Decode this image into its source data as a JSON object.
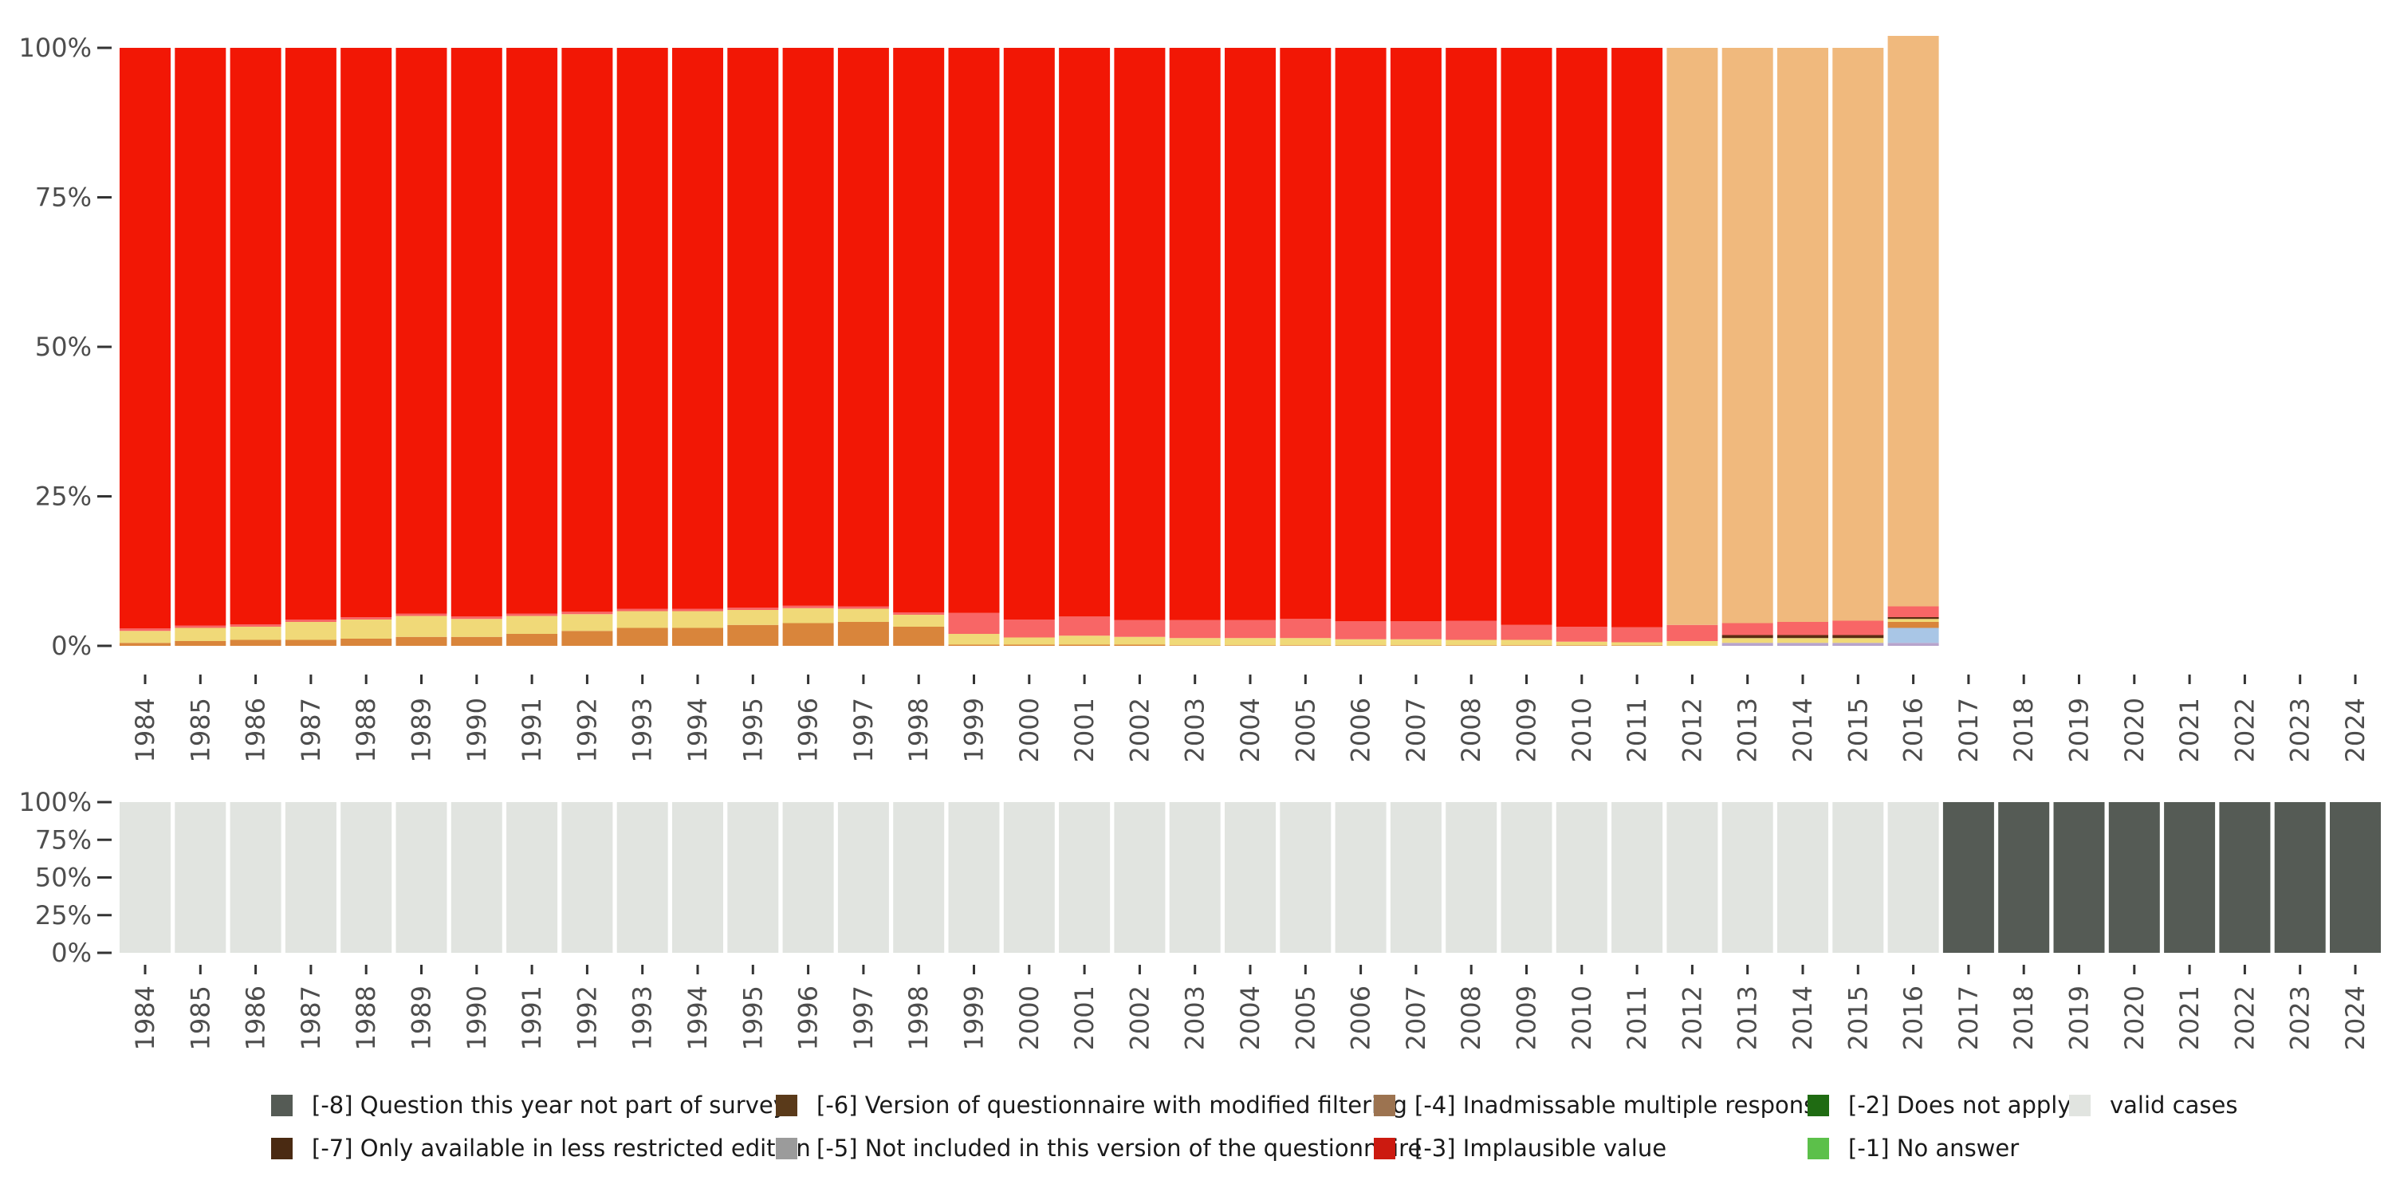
{
  "chart_data": [
    {
      "type": "bar",
      "stacked": true,
      "ylim": [
        0,
        100
      ],
      "yticks": [
        "0%",
        "25%",
        "50%",
        "75%",
        "100%"
      ],
      "categories": [
        "1984",
        "1985",
        "1986",
        "1987",
        "1988",
        "1989",
        "1990",
        "1991",
        "1992",
        "1993",
        "1994",
        "1995",
        "1996",
        "1997",
        "1998",
        "1999",
        "2000",
        "2001",
        "2002",
        "2003",
        "2004",
        "2005",
        "2006",
        "2007",
        "2008",
        "2009",
        "2010",
        "2011",
        "2012",
        "2013",
        "2014",
        "2015",
        "2016",
        "2017",
        "2018",
        "2019",
        "2020",
        "2021",
        "2022",
        "2023",
        "2024"
      ],
      "series": [
        {
          "name": "purple",
          "color": "#b7a4cc",
          "values": [
            0,
            0,
            0,
            0,
            0,
            0,
            0,
            0,
            0,
            0,
            0,
            0,
            0,
            0,
            0,
            0,
            0,
            0,
            0,
            0,
            0,
            0,
            0,
            0,
            0,
            0,
            0,
            0,
            0,
            0.5,
            0.5,
            0.5,
            0.5,
            0,
            0,
            0,
            0,
            0,
            0,
            0,
            0
          ]
        },
        {
          "name": "light blue",
          "color": "#a9c6e6",
          "values": [
            0,
            0,
            0,
            0,
            0,
            0,
            0,
            0,
            0,
            0,
            0,
            0,
            0,
            0,
            0,
            0,
            0,
            0,
            0,
            0,
            0,
            0,
            0,
            0,
            0,
            0,
            0,
            0,
            0,
            0,
            0,
            0,
            2.5,
            0,
            0,
            0,
            0,
            0,
            0,
            0,
            0
          ]
        },
        {
          "name": "dark orange",
          "color": "#d9853b",
          "values": [
            0.5,
            0.8,
            1,
            1,
            1.2,
            1.5,
            1.5,
            2,
            2.5,
            3,
            3,
            3.5,
            3.8,
            4,
            3.2,
            0.2,
            0.2,
            0.2,
            0.2,
            0.1,
            0.1,
            0.1,
            0.1,
            0.1,
            0.1,
            0.1,
            0.1,
            0.1,
            0,
            0,
            0,
            0,
            1,
            0,
            0,
            0,
            0,
            0,
            0,
            0,
            0
          ]
        },
        {
          "name": "pale yellow",
          "color": "#f0d978",
          "values": [
            2,
            2.2,
            2.2,
            3,
            3.2,
            3.5,
            3,
            3,
            2.8,
            2.8,
            2.8,
            2.5,
            2.5,
            2.2,
            2,
            1.8,
            1.2,
            1.5,
            1.3,
            1.2,
            1.2,
            1.2,
            1,
            1,
            0.9,
            0.9,
            0.6,
            0.5,
            0.8,
            0.8,
            0.8,
            0.8,
            0.5,
            0,
            0,
            0,
            0,
            0,
            0,
            0,
            0
          ]
        },
        {
          "name": "dark brown",
          "color": "#5a2d12",
          "values": [
            0,
            0,
            0,
            0,
            0,
            0,
            0,
            0,
            0,
            0,
            0,
            0,
            0,
            0,
            0,
            0,
            0,
            0,
            0,
            0,
            0,
            0,
            0,
            0,
            0,
            0,
            0,
            0,
            0,
            0.5,
            0.5,
            0.5,
            0.3,
            0,
            0,
            0,
            0,
            0,
            0,
            0,
            0
          ]
        },
        {
          "name": "pink",
          "color": "#f86666",
          "values": [
            0.4,
            0.4,
            0.4,
            0.4,
            0.4,
            0.4,
            0.4,
            0.4,
            0.4,
            0.4,
            0.4,
            0.4,
            0.4,
            0.4,
            0.4,
            3.5,
            3,
            3.2,
            2.8,
            3,
            3,
            3.2,
            3,
            3,
            3.2,
            2.5,
            2.5,
            2.5,
            2.7,
            2,
            2.2,
            2.4,
            1.8,
            0,
            0,
            0,
            0,
            0,
            0,
            0,
            0
          ]
        },
        {
          "name": "red",
          "color": "#f21705",
          "values": [
            97.1,
            96.6,
            96.4,
            95.6,
            95.2,
            94.6,
            95.1,
            94.6,
            94.3,
            93.8,
            93.8,
            93.6,
            93.3,
            93.4,
            94.4,
            94.5,
            95.6,
            95.1,
            95.7,
            95.7,
            95.7,
            95.5,
            95.9,
            95.9,
            95.8,
            96.5,
            96.8,
            96.9,
            0,
            0,
            0,
            0,
            0,
            0,
            0,
            0,
            0,
            0,
            0,
            0,
            0
          ]
        },
        {
          "name": "light orange",
          "color": "#f0b97d",
          "values": [
            0,
            0,
            0,
            0,
            0,
            0,
            0,
            0,
            0,
            0,
            0,
            0,
            0,
            0,
            0,
            0,
            0,
            0,
            0,
            0,
            0,
            0,
            0,
            0,
            0,
            0,
            0,
            0,
            96.5,
            96.2,
            96,
            95.8,
            95.4,
            0,
            0,
            0,
            0,
            0,
            0,
            0,
            0
          ]
        }
      ]
    },
    {
      "type": "bar",
      "stacked": true,
      "ylim": [
        0,
        100
      ],
      "yticks": [
        "0%",
        "25%",
        "50%",
        "75%",
        "100%"
      ],
      "categories": [
        "1984",
        "1985",
        "1986",
        "1987",
        "1988",
        "1989",
        "1990",
        "1991",
        "1992",
        "1993",
        "1994",
        "1995",
        "1996",
        "1997",
        "1998",
        "1999",
        "2000",
        "2001",
        "2002",
        "2003",
        "2004",
        "2005",
        "2006",
        "2007",
        "2008",
        "2009",
        "2010",
        "2011",
        "2012",
        "2013",
        "2014",
        "2015",
        "2016",
        "2017",
        "2018",
        "2019",
        "2020",
        "2021",
        "2022",
        "2023",
        "2024"
      ],
      "series": [
        {
          "name": "valid cases",
          "color": "#e1e4e0",
          "values": [
            100,
            100,
            100,
            100,
            100,
            100,
            100,
            100,
            100,
            100,
            100,
            100,
            100,
            100,
            100,
            100,
            100,
            100,
            100,
            100,
            100,
            100,
            100,
            100,
            100,
            100,
            100,
            100,
            100,
            100,
            100,
            100,
            100,
            0,
            0,
            0,
            0,
            0,
            0,
            0,
            0
          ]
        },
        {
          "name": "[-8] Question this year not part of survey",
          "color": "#555b55",
          "values": [
            0,
            0,
            0,
            0,
            0,
            0,
            0,
            0,
            0,
            0,
            0,
            0,
            0,
            0,
            0,
            0,
            0,
            0,
            0,
            0,
            0,
            0,
            0,
            0,
            0,
            0,
            0,
            0,
            0,
            0,
            0,
            0,
            0,
            100,
            100,
            100,
            100,
            100,
            100,
            100,
            100
          ]
        }
      ]
    }
  ],
  "legend": [
    {
      "label": "[-8] Question this year not part of survey",
      "color": "#555b55"
    },
    {
      "label": "[-7] Only available in less restricted edition",
      "color": "#4a2a12"
    },
    {
      "label": "[-6] Version of questionnaire with modified filtering",
      "color": "#5a3a1a"
    },
    {
      "label": "[-5] Not included in this version of the questionnaire",
      "color": "#9b9b9b"
    },
    {
      "label": "[-4] Inadmissable multiple response",
      "color": "#9c7350"
    },
    {
      "label": "[-3] Implausible value",
      "color": "#cc1a10"
    },
    {
      "label": "[-2] Does not apply",
      "color": "#1f6b12"
    },
    {
      "label": "[-1] No answer",
      "color": "#5cc04a"
    },
    {
      "label": "valid cases",
      "color": "#e1e4e0"
    }
  ]
}
